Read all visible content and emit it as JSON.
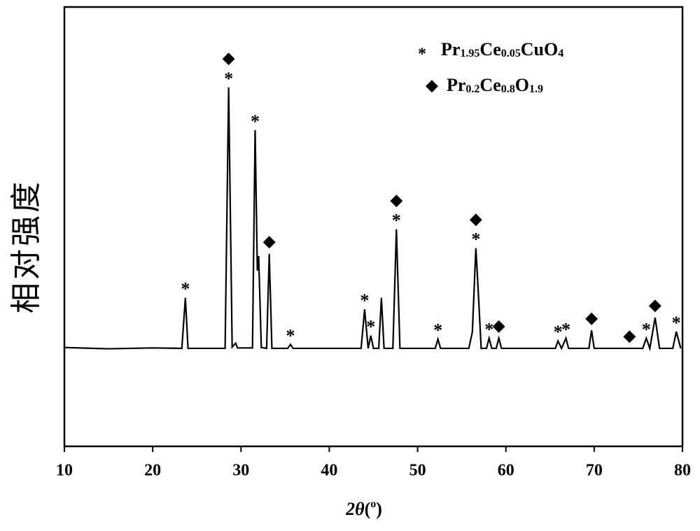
{
  "chart_data": {
    "type": "line",
    "xlabel": [
      "2θ",
      "(",
      "o",
      ")"
    ],
    "ylabel": "相对强度",
    "xlim": [
      10,
      80
    ],
    "xticks": [
      10,
      20,
      30,
      40,
      50,
      60,
      70,
      80
    ],
    "ylim": [
      0,
      100
    ],
    "color": "#000000",
    "series": [
      {
        "x": [
          10,
          15,
          20,
          23.3,
          23.7,
          24.0,
          28.2,
          28.6,
          29.0,
          29.4,
          29.6,
          31.3,
          31.6,
          31.85,
          32.0,
          32.3,
          32.9,
          33.2,
          33.5,
          35.3,
          35.6,
          35.9,
          43.6,
          44.0,
          44.4,
          44.7,
          45.0,
          45.6,
          45.9,
          46.2,
          47.2,
          47.6,
          48.0,
          52.0,
          52.3,
          52.6,
          55.8,
          56.2,
          56.6,
          56.8,
          57.2,
          57.8,
          58.1,
          58.4,
          58.9,
          59.2,
          59.5,
          65.6,
          65.9,
          66.3,
          66.8,
          67.1,
          69.4,
          69.7,
          70.0,
          75.5,
          75.9,
          76.3,
          76.9,
          77.4,
          78.9,
          79.3,
          79.8
        ],
        "values": [
          22.5,
          22.2,
          22.4,
          22.3,
          33.8,
          22.3,
          22.3,
          81.7,
          22.6,
          23.5,
          22.4,
          22.4,
          72.0,
          40,
          43.3,
          22.5,
          22.3,
          43.8,
          22.3,
          22.3,
          23.2,
          22.3,
          22.3,
          31.2,
          22.3,
          25.2,
          22.3,
          22.3,
          33.8,
          22.3,
          22.3,
          49.4,
          22.3,
          22.3,
          24.4,
          22.3,
          22.3,
          26,
          45.1,
          37.9,
          22.3,
          22.3,
          24.6,
          22.3,
          22.3,
          24.6,
          22.3,
          22.3,
          24,
          22.3,
          24.6,
          22.3,
          22.3,
          26.4,
          22.3,
          22.3,
          24.6,
          22.3,
          29.3,
          22.3,
          22.3,
          26.1,
          22.3
        ]
      }
    ],
    "legend": [
      {
        "symbol": "*",
        "name": [
          "Pr",
          "1.95",
          "Ce",
          "0.05",
          "CuO",
          "4"
        ]
      },
      {
        "symbol": "◆",
        "name": [
          "Pr",
          "0.2",
          "Ce",
          "0.8",
          "O",
          "1.9"
        ]
      }
    ],
    "peaks": [
      {
        "x": 23.7,
        "y": 33.8,
        "phases": [
          0
        ]
      },
      {
        "x": 28.6,
        "y": 81.7,
        "phases": [
          0,
          1
        ]
      },
      {
        "x": 31.6,
        "y": 72.0,
        "phases": [
          0
        ]
      },
      {
        "x": 33.2,
        "y": 43.8,
        "phases": [
          1
        ]
      },
      {
        "x": 35.6,
        "y": 23.2,
        "phases": [
          0
        ]
      },
      {
        "x": 44.0,
        "y": 31.2,
        "phases": [
          0
        ]
      },
      {
        "x": 44.7,
        "y": 25.2,
        "phases": [
          0
        ]
      },
      {
        "x": 47.6,
        "y": 49.4,
        "phases": [
          0,
          1
        ]
      },
      {
        "x": 52.3,
        "y": 24.4,
        "phases": [
          0
        ]
      },
      {
        "x": 56.6,
        "y": 45.1,
        "phases": [
          0,
          1
        ]
      },
      {
        "x": 58.1,
        "y": 24.6,
        "phases": [
          0
        ]
      },
      {
        "x": 59.2,
        "y": 24.6,
        "phases": [
          1
        ]
      },
      {
        "x": 65.9,
        "y": 24,
        "phases": [
          0
        ]
      },
      {
        "x": 66.8,
        "y": 24.6,
        "phases": [
          0
        ]
      },
      {
        "x": 69.7,
        "y": 26.4,
        "phases": [
          1
        ]
      },
      {
        "x": 74.0,
        "y": 22.3,
        "phases": [
          1
        ]
      },
      {
        "x": 75.9,
        "y": 24.6,
        "phases": [
          0
        ]
      },
      {
        "x": 76.9,
        "y": 29.3,
        "phases": [
          1
        ]
      },
      {
        "x": 79.3,
        "y": 26.1,
        "phases": [
          0
        ]
      }
    ]
  }
}
